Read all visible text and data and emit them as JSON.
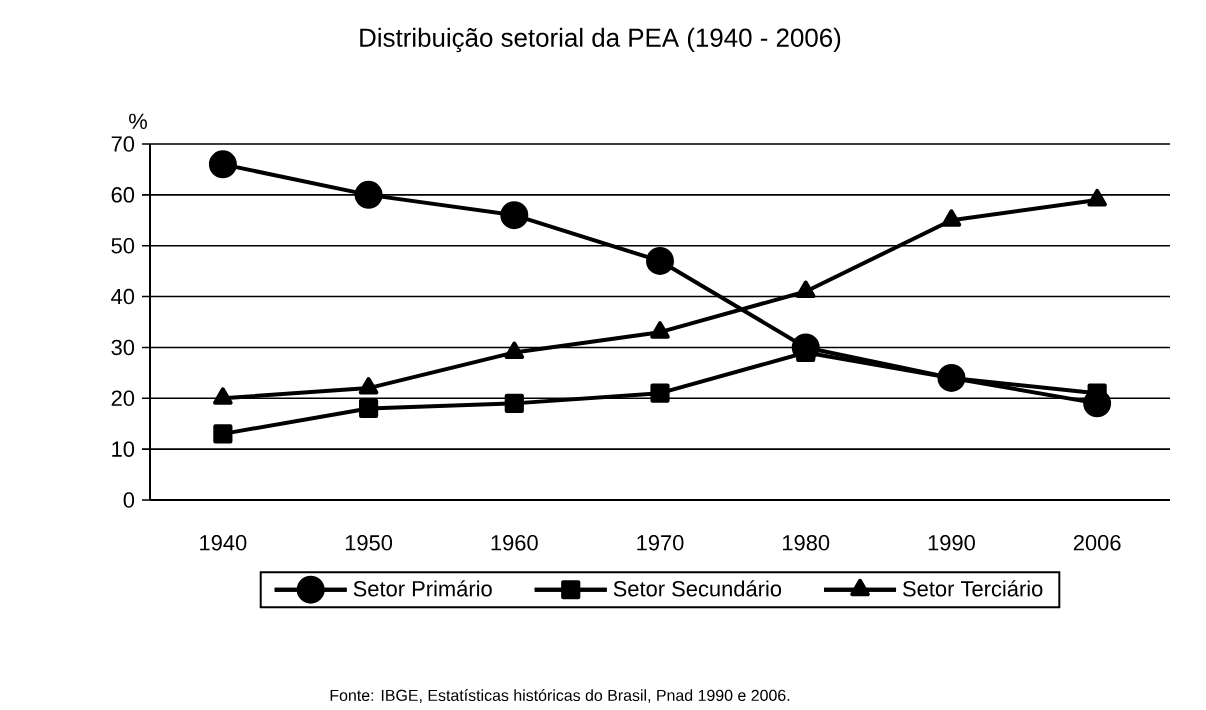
{
  "chart_data": {
    "type": "line",
    "title": "Distribuição setorial da PEA (1940 - 2006)",
    "ylabel": "%",
    "categories": [
      "1940",
      "1950",
      "1960",
      "1970",
      "1980",
      "1990",
      "2006"
    ],
    "series": [
      {
        "name": "Setor Primário",
        "color": "#000000",
        "marker": "circle",
        "values": [
          66,
          60,
          56,
          47,
          30,
          24,
          19
        ]
      },
      {
        "name": "Setor Secundário",
        "color": "#000000",
        "marker": "square",
        "values": [
          13,
          18,
          19,
          21,
          29,
          24,
          21
        ]
      },
      {
        "name": "Setor Terciário",
        "color": "#000000",
        "marker": "triangle",
        "values": [
          20,
          22,
          29,
          33,
          41,
          55,
          59
        ]
      }
    ],
    "ylim": [
      0,
      70
    ],
    "yticks": [
      0,
      10,
      20,
      30,
      40,
      50,
      60,
      70
    ],
    "grid": "y",
    "legend": "bottom",
    "line_style": "solid",
    "annotations": [
      "Fonte: IBGE, Estatísticas históricas do Brasil, Pnad 1990 e 2006."
    ]
  }
}
